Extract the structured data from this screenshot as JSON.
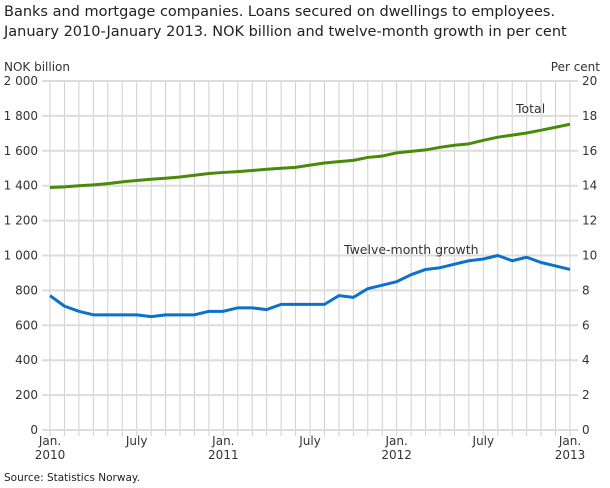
{
  "chart_data": {
    "type": "line",
    "title": "Banks and mortgage companies. Loans secured on dwellings to employees. January 2010-January 2013. NOK billion and twelve-month growth in per cent",
    "title_lines": [
      "Banks and mortgage companies. Loans secured on dwellings to employees.",
      "January 2010-January 2013. NOK billion and twelve-month growth in per cent"
    ],
    "ylabel": "NOK billion",
    "y2label": "Per cent",
    "ylim": [
      0,
      2000
    ],
    "y2lim": [
      0,
      20
    ],
    "yticks": [
      "0",
      "200",
      "400",
      "600",
      "800",
      "1 000",
      "1 200",
      "1 400",
      "1 600",
      "1 800",
      "2 000"
    ],
    "y2ticks": [
      "0",
      "2",
      "4",
      "6",
      "8",
      "10",
      "12",
      "14",
      "16",
      "18",
      "20"
    ],
    "xticks": [
      {
        "month": 0,
        "label": "Jan.",
        "year": "2010"
      },
      {
        "month": 6,
        "label": "July",
        "year": ""
      },
      {
        "month": 12,
        "label": "Jan.",
        "year": "2011"
      },
      {
        "month": 18,
        "label": "July",
        "year": ""
      },
      {
        "month": 24,
        "label": "Jan.",
        "year": "2012"
      },
      {
        "month": 30,
        "label": "July",
        "year": ""
      },
      {
        "month": 36,
        "label": "Jan.",
        "year": "2013"
      }
    ],
    "x_range": [
      "2010-01",
      "2013-01"
    ],
    "grid": true,
    "series": [
      {
        "name": "Total",
        "axis": "left",
        "color": "#4a8a0b",
        "values": [
          1390,
          1393,
          1400,
          1405,
          1412,
          1422,
          1430,
          1437,
          1443,
          1450,
          1460,
          1470,
          1476,
          1481,
          1487,
          1494,
          1500,
          1505,
          1518,
          1530,
          1538,
          1545,
          1562,
          1570,
          1588,
          1597,
          1605,
          1620,
          1632,
          1640,
          1660,
          1678,
          1690,
          1702,
          1718,
          1735,
          1752
        ]
      },
      {
        "name": "Twelve-month growth",
        "axis": "right",
        "color": "#0a72cc",
        "values": [
          7.7,
          7.1,
          6.8,
          6.6,
          6.6,
          6.6,
          6.6,
          6.5,
          6.6,
          6.6,
          6.6,
          6.8,
          6.8,
          7.0,
          7.0,
          6.9,
          7.2,
          7.2,
          7.2,
          7.2,
          7.7,
          7.6,
          8.1,
          8.3,
          8.5,
          8.9,
          9.2,
          9.3,
          9.5,
          9.7,
          9.8,
          10.0,
          9.7,
          9.9,
          9.6,
          9.4,
          9.2
        ]
      }
    ]
  },
  "source": "Source: Statistics Norway."
}
